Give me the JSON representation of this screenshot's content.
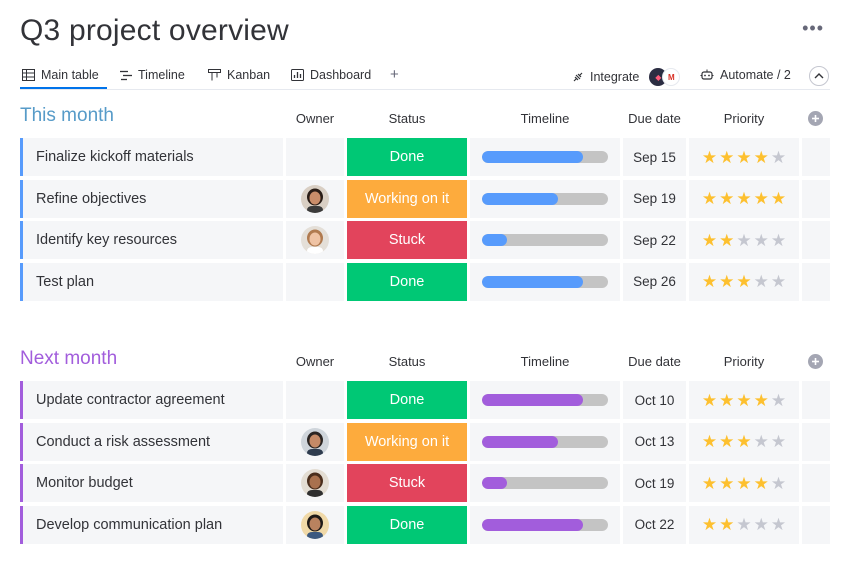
{
  "page": {
    "title": "Q3 project overview",
    "more_glyph": "•••"
  },
  "tabs": [
    {
      "label": "Main table",
      "icon": "table-icon",
      "active": true
    },
    {
      "label": "Timeline",
      "icon": "timeline-icon",
      "active": false
    },
    {
      "label": "Kanban",
      "icon": "kanban-icon",
      "active": false
    },
    {
      "label": "Dashboard",
      "icon": "dashboard-icon",
      "active": false
    }
  ],
  "tab_add": "+",
  "toolbar": {
    "integrate_label": "Integrate",
    "integrate_logo_a": "◆",
    "integrate_logo_b": "M",
    "automate_label": "Automate / 2"
  },
  "columns": {
    "owner": "Owner",
    "status": "Status",
    "timeline": "Timeline",
    "due": "Due date",
    "priority": "Priority"
  },
  "status_colors": {
    "Done": "#00c875",
    "Working on it": "#fdab3d",
    "Stuck": "#e2445c"
  },
  "groups": [
    {
      "title": "This month",
      "color": "#579bfc",
      "title_color": "#579bc8",
      "items": [
        {
          "name": "Finalize kickoff materials",
          "owner": null,
          "status": "Done",
          "timeline": 0.8,
          "due": "Sep 15",
          "priority": 4
        },
        {
          "name": "Refine objectives",
          "owner": "woman-dark-hair",
          "status": "Working on it",
          "timeline": 0.6,
          "due": "Sep 19",
          "priority": 5
        },
        {
          "name": "Identify key resources",
          "owner": "woman-light-hair",
          "status": "Stuck",
          "timeline": 0.2,
          "due": "Sep 22",
          "priority": 2
        },
        {
          "name": "Test plan",
          "owner": null,
          "status": "Done",
          "timeline": 0.8,
          "due": "Sep 26",
          "priority": 3
        }
      ]
    },
    {
      "title": "Next month",
      "color": "#a25ddc",
      "title_color": "#a25ddc",
      "items": [
        {
          "name": "Update contractor agreement",
          "owner": null,
          "status": "Done",
          "timeline": 0.8,
          "due": "Oct 10",
          "priority": 4
        },
        {
          "name": "Conduct a risk assessment",
          "owner": "man-beard",
          "status": "Working on it",
          "timeline": 0.6,
          "due": "Oct 13",
          "priority": 3
        },
        {
          "name": "Monitor budget",
          "owner": "man-curly",
          "status": "Stuck",
          "timeline": 0.2,
          "due": "Oct 19",
          "priority": 4
        },
        {
          "name": "Develop communication plan",
          "owner": "man-glasses",
          "status": "Done",
          "timeline": 0.8,
          "due": "Oct 22",
          "priority": 2
        }
      ]
    }
  ]
}
